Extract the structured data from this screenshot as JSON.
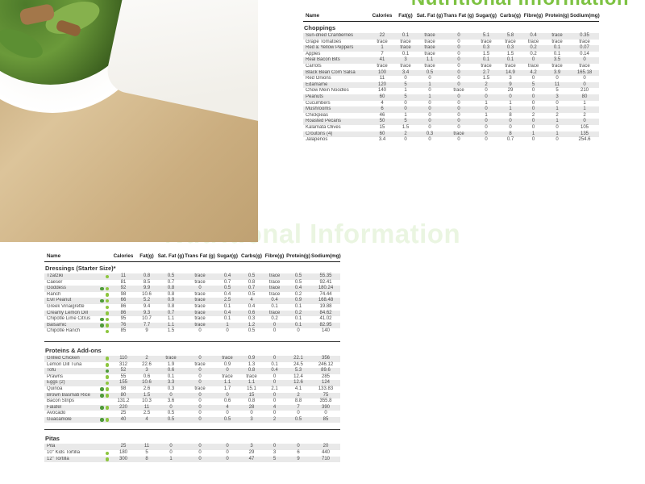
{
  "page": {
    "title_top": "Nutritional Information",
    "title_mid": "Nutritional Information",
    "accent_green": "#7dc242"
  },
  "badge_colors": {
    "dark": "#4f9b3a",
    "light": "#8dc63f"
  },
  "columns": [
    "Name",
    "Calories",
    "Fat(g)",
    "Sat. Fat (g)",
    "Trans Fat (g)",
    "Sugar(g)",
    "Carbs(g)",
    "Fibre(g)",
    "Protein(g)",
    "Sodium(mg)"
  ],
  "table_top": {
    "sections": [
      {
        "title": "Choppings",
        "rows": [
          {
            "name": "Sun-dried Cranberries",
            "badges": [],
            "values": [
              "22",
              "0.1",
              "trace",
              "0",
              "5.1",
              "5.8",
              "0.4",
              "trace",
              "0.35"
            ]
          },
          {
            "name": "Grape Tomatoes",
            "badges": [],
            "values": [
              "trace",
              "trace",
              "trace",
              "0",
              "trace",
              "trace",
              "trace",
              "trace",
              "trace"
            ]
          },
          {
            "name": "Red & Yellow Peppers",
            "badges": [],
            "values": [
              "1",
              "trace",
              "trace",
              "0",
              "0.3",
              "0.3",
              "0.2",
              "0.1",
              "0.07"
            ]
          },
          {
            "name": "Apples",
            "badges": [],
            "values": [
              "7",
              "0.1",
              "trace",
              "0",
              "1.5",
              "1.5",
              "0.2",
              "0.1",
              "0.14"
            ]
          },
          {
            "name": "Real Bacon Bits",
            "badges": [],
            "values": [
              "41",
              "3",
              "1.1",
              "0",
              "0.1",
              "0.1",
              "0",
              "3.5",
              "0"
            ]
          },
          {
            "name": "Carrots",
            "badges": [],
            "values": [
              "trace",
              "trace",
              "trace",
              "0",
              "trace",
              "trace",
              "trace",
              "trace",
              "trace"
            ]
          },
          {
            "name": "Black Bean Corn Salsa",
            "badges": [],
            "values": [
              "100",
              "3.4",
              "0.5",
              "0",
              "2.7",
              "14.9",
              "4.2",
              "3.9",
              "165.18"
            ]
          },
          {
            "name": "Red Onions",
            "badges": [],
            "values": [
              "11",
              "0",
              "0",
              "0",
              "1.5",
              "3",
              "0",
              "0",
              "0"
            ]
          },
          {
            "name": "Edamame",
            "badges": [],
            "values": [
              "120",
              "5",
              "1",
              "0",
              "2",
              "9",
              "5",
              "11",
              "0"
            ]
          },
          {
            "name": "Chow Mein Noodles",
            "badges": [],
            "values": [
              "140",
              "1",
              "0",
              "trace",
              "0",
              "29",
              "0",
              "5",
              "210"
            ]
          },
          {
            "name": "Peanuts",
            "badges": [],
            "values": [
              "60",
              "5",
              "1",
              "0",
              "0",
              "0",
              "0",
              "3",
              "80"
            ]
          },
          {
            "name": "Cucumbers",
            "badges": [],
            "values": [
              "4",
              "0",
              "0",
              "0",
              "1",
              "1",
              "0",
              "0",
              "1"
            ]
          },
          {
            "name": "Mushrooms",
            "badges": [],
            "values": [
              "6",
              "0",
              "0",
              "0",
              "0",
              "1",
              "0",
              "1",
              "1"
            ]
          },
          {
            "name": "Chickpeas",
            "badges": [],
            "values": [
              "46",
              "1",
              "0",
              "0",
              "1",
              "8",
              "2",
              "2",
              "2"
            ]
          },
          {
            "name": "Roasted Pecans",
            "badges": [],
            "values": [
              "50",
              "5",
              "0",
              "0",
              "0",
              "0",
              "0",
              "1",
              "0"
            ]
          },
          {
            "name": "Kalamata Olives",
            "badges": [],
            "values": [
              "15",
              "1.5",
              "0",
              "0",
              "0",
              "0",
              "0",
              "0",
              "105"
            ]
          },
          {
            "name": "Croutons (4)",
            "badges": [],
            "values": [
              "60",
              "2",
              "0.3",
              "trace",
              "0",
              "8",
              "1",
              "1",
              "135"
            ]
          },
          {
            "name": "Jalapenos",
            "badges": [],
            "values": [
              "3.4",
              "0",
              "0",
              "0",
              "0",
              "0.7",
              "0",
              "0",
              "254.6"
            ]
          }
        ]
      }
    ]
  },
  "table_bottom": {
    "sections": [
      {
        "title": "Dressings (Starter Size)*",
        "rows": [
          {
            "name": "Tzatziki",
            "badges": [
              "light"
            ],
            "values": [
              "11",
              "0.8",
              "0.5",
              "trace",
              "0.4",
              "0.5",
              "trace",
              "0.5",
              "55.35"
            ]
          },
          {
            "name": "Caeser",
            "badges": [],
            "values": [
              "81",
              "8.5",
              "0.7",
              "trace",
              "0.7",
              "0.8",
              "trace",
              "0.5",
              "92.41"
            ]
          },
          {
            "name": "Goddess",
            "badges": [
              "dark",
              "light"
            ],
            "values": [
              "92",
              "9.9",
              "0.8",
              "0",
              "0.5",
              "0.7",
              "trace",
              "0.4",
              "180.24"
            ]
          },
          {
            "name": "Ranch",
            "badges": [
              "light"
            ],
            "values": [
              "98",
              "10.6",
              "0.8",
              "trace",
              "0.4",
              "0.5",
              "trace",
              "0.2",
              "74.44"
            ]
          },
          {
            "name": "Evil Peanut",
            "badges": [
              "dark",
              "light"
            ],
            "values": [
              "66",
              "5.2",
              "0.9",
              "trace",
              "2.5",
              "4",
              "0.4",
              "0.9",
              "168.48"
            ]
          },
          {
            "name": "Greek Vinaigrette",
            "badges": [
              "light"
            ],
            "values": [
              "86",
              "9.4",
              "0.8",
              "trace",
              "0.1",
              "0.4",
              "0.1",
              "0.1",
              "19.88"
            ]
          },
          {
            "name": "Creamy Lemon Dill",
            "badges": [
              "light"
            ],
            "values": [
              "86",
              "9.3",
              "0.7",
              "trace",
              "0.4",
              "0.6",
              "trace",
              "0.2",
              "84.62"
            ]
          },
          {
            "name": "Chipotle Lime Citrus",
            "badges": [
              "dark",
              "light"
            ],
            "values": [
              "95",
              "10.7",
              "1.1",
              "trace",
              "0.1",
              "0.3",
              "0.2",
              "0.1",
              "41.02"
            ]
          },
          {
            "name": "Balsamic",
            "badges": [
              "dark",
              "light"
            ],
            "values": [
              "76",
              "7.7",
              "1.1",
              "trace",
              "1",
              "1.2",
              "0",
              "0.1",
              "82.95"
            ]
          },
          {
            "name": "Chipotle Ranch",
            "badges": [
              "light"
            ],
            "values": [
              "85",
              "9",
              "1.5",
              "0",
              "0",
              "0.5",
              "0",
              "0",
              "140"
            ]
          }
        ]
      },
      {
        "title": "Proteins & Add-ons",
        "rows": [
          {
            "name": "Grilled Chicken",
            "badges": [
              "light"
            ],
            "values": [
              "110",
              "2",
              "trace",
              "0",
              "trace",
              "0.9",
              "0",
              "22.1",
              "356"
            ]
          },
          {
            "name": "Lemon Dill Tuna",
            "badges": [
              "light"
            ],
            "values": [
              "312",
              "22.6",
              "1.9",
              "trace",
              "0.9",
              "1.3",
              "0.1",
              "24.5",
              "246.12"
            ]
          },
          {
            "name": "Tofu",
            "badges": [
              "dark"
            ],
            "values": [
              "52",
              "3",
              "0.6",
              "0",
              "0",
              "0.8",
              "0.4",
              "5.3",
              "89.6"
            ]
          },
          {
            "name": "Prawns",
            "badges": [
              "light"
            ],
            "values": [
              "55",
              "0.6",
              "0.1",
              "0",
              "trace",
              "trace",
              "0",
              "12.4",
              "285"
            ]
          },
          {
            "name": "Eggs (2)",
            "badges": [
              "light"
            ],
            "values": [
              "155",
              "10.6",
              "3.3",
              "0",
              "1.1",
              "1.1",
              "0",
              "12.6",
              "124"
            ]
          },
          {
            "name": "Quinoa",
            "badges": [
              "dark",
              "light"
            ],
            "values": [
              "98",
              "2.6",
              "0.3",
              "trace",
              "1.7",
              "15.1",
              "2.1",
              "4.1",
              "133.83"
            ]
          },
          {
            "name": "Brown Basmati Rice",
            "badges": [
              "dark",
              "light"
            ],
            "values": [
              "80",
              "1.5",
              "0",
              "0",
              "0",
              "15",
              "0",
              "2",
              "75"
            ]
          },
          {
            "name": "Bacon Strips",
            "badges": [],
            "values": [
              "131.2",
              "10.3",
              "3.6",
              "0",
              "0.6",
              "0.8",
              "0",
              "8.8",
              "355.8"
            ]
          },
          {
            "name": "Falafel",
            "badges": [
              "dark",
              "light"
            ],
            "values": [
              "220",
              "11",
              "0",
              "0",
              "4",
              "28",
              "4",
              "7",
              "390"
            ]
          },
          {
            "name": "Avocado",
            "badges": [],
            "values": [
              "25",
              "2.5",
              "0.5",
              "0",
              "0",
              "0",
              "0",
              "0",
              "0"
            ]
          },
          {
            "name": "Guacamole",
            "badges": [
              "dark",
              "light"
            ],
            "values": [
              "40",
              "4",
              "0.5",
              "0",
              "0.5",
              "3",
              "2",
              "0.5",
              "85"
            ]
          }
        ]
      },
      {
        "title": "Pitas",
        "rows": [
          {
            "name": "Pita",
            "badges": [],
            "values": [
              "25",
              "11",
              "0",
              "0",
              "0",
              "3",
              "0",
              "0",
              "20"
            ]
          },
          {
            "name": "10\" Kids Tortilla",
            "badges": [
              "light"
            ],
            "values": [
              "180",
              "5",
              "0",
              "0",
              "0",
              "29",
              "3",
              "6",
              "440"
            ]
          },
          {
            "name": "12\" Tortilla",
            "badges": [
              "light"
            ],
            "values": [
              "300",
              "8",
              "1",
              "0",
              "0",
              "47",
              "5",
              "9",
              "710"
            ]
          }
        ]
      }
    ]
  }
}
